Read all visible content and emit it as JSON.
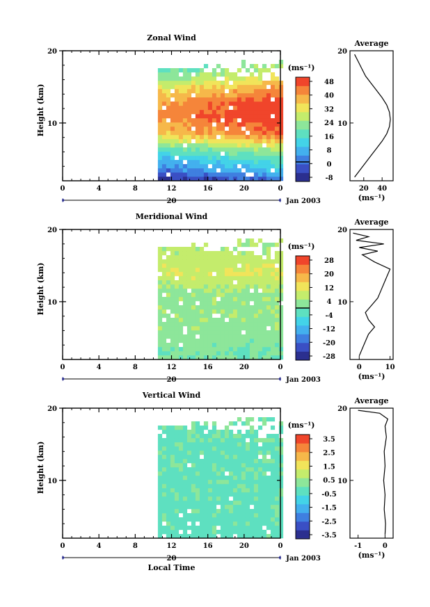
{
  "chart_data": [
    {
      "type": "heatmap",
      "title": "Zonal Wind",
      "ylabel": "Height (km)",
      "ytick_labels": [
        "20",
        "10"
      ],
      "yticks": [
        20,
        10
      ],
      "ylim": [
        2,
        20
      ],
      "xtick_labels": [
        "0",
        "4",
        "8",
        "12",
        "16",
        "20",
        "0"
      ],
      "xlim": [
        0,
        24
      ],
      "data_start_hour": 10.5,
      "date_day": "20",
      "date_label": "Jan 2003",
      "colorbar": {
        "unit": "(ms⁻¹)",
        "tick_labels": [
          "48",
          "40",
          "32",
          "24",
          "16",
          "8",
          "0",
          "-8"
        ],
        "range": [
          -12,
          52
        ],
        "zero_line": true
      },
      "layers": [
        {
          "h": 2.0,
          "v": -6
        },
        {
          "h": 3.0,
          "v": 2
        },
        {
          "h": 4.0,
          "v": 8
        },
        {
          "h": 5.5,
          "v": 16
        },
        {
          "h": 7.0,
          "v": 28
        },
        {
          "h": 8.5,
          "v": 42
        },
        {
          "h": 11.0,
          "v": 48
        },
        {
          "h": 13.0,
          "v": 46
        },
        {
          "h": 15.0,
          "v": 36
        },
        {
          "h": 17.0,
          "v": 24
        },
        {
          "h": 19.0,
          "v": 16
        }
      ],
      "profile": {
        "title": "Average",
        "x_tick_labels": [
          "20",
          "40"
        ],
        "xlim": [
          5,
          52
        ],
        "xlabel": "(ms⁻¹)",
        "y_tick_labels": [
          "20",
          "10"
        ],
        "points": [
          {
            "h": 2.5,
            "v": 10
          },
          {
            "h": 3.5,
            "v": 16
          },
          {
            "h": 4.5,
            "v": 22
          },
          {
            "h": 5.5,
            "v": 28
          },
          {
            "h": 6.5,
            "v": 34
          },
          {
            "h": 7.5,
            "v": 40
          },
          {
            "h": 8.5,
            "v": 45
          },
          {
            "h": 9.5,
            "v": 48
          },
          {
            "h": 10.5,
            "v": 49
          },
          {
            "h": 11.5,
            "v": 48
          },
          {
            "h": 12.5,
            "v": 45
          },
          {
            "h": 13.5,
            "v": 40
          },
          {
            "h": 14.5,
            "v": 34
          },
          {
            "h": 15.5,
            "v": 28
          },
          {
            "h": 16.5,
            "v": 22
          },
          {
            "h": 17.5,
            "v": 18
          },
          {
            "h": 18.5,
            "v": 14
          },
          {
            "h": 19.5,
            "v": 10
          }
        ]
      }
    },
    {
      "type": "heatmap",
      "title": "Meridional Wind",
      "ylabel": "Height (km)",
      "ytick_labels": [
        "20",
        "10"
      ],
      "yticks": [
        20,
        10
      ],
      "ylim": [
        2,
        20
      ],
      "xtick_labels": [
        "0",
        "4",
        "8",
        "12",
        "16",
        "20",
        "0"
      ],
      "xlim": [
        0,
        24
      ],
      "data_start_hour": 10.5,
      "date_day": "20",
      "date_label": "Jan 2003",
      "colorbar": {
        "unit": "(ms⁻¹)",
        "tick_labels": [
          "28",
          "20",
          "12",
          "4",
          "-4",
          "-12",
          "-20",
          "-28"
        ],
        "range": [
          -32,
          32
        ],
        "zero_line": true
      },
      "layers": [
        {
          "h": 2.0,
          "v": 0
        },
        {
          "h": 4.0,
          "v": 2
        },
        {
          "h": 6.0,
          "v": 3
        },
        {
          "h": 8.0,
          "v": 4
        },
        {
          "h": 10.0,
          "v": 3
        },
        {
          "h": 12.0,
          "v": 6
        },
        {
          "h": 14.0,
          "v": 10
        },
        {
          "h": 16.0,
          "v": 8
        },
        {
          "h": 18.0,
          "v": 6
        },
        {
          "h": 19.5,
          "v": 4
        }
      ],
      "profile": {
        "title": "Average",
        "x_tick_labels": [
          "0",
          "10"
        ],
        "xlim": [
          -3,
          11
        ],
        "xlabel": "(ms⁻¹)",
        "y_tick_labels": [
          "20",
          "10"
        ],
        "points": [
          {
            "h": 2.5,
            "v": 0
          },
          {
            "h": 3.5,
            "v": 1
          },
          {
            "h": 4.5,
            "v": 2
          },
          {
            "h": 5.5,
            "v": 3
          },
          {
            "h": 6.5,
            "v": 5
          },
          {
            "h": 7.5,
            "v": 3
          },
          {
            "h": 8.5,
            "v": 2
          },
          {
            "h": 9.5,
            "v": 4
          },
          {
            "h": 10.5,
            "v": 6
          },
          {
            "h": 11.5,
            "v": 7
          },
          {
            "h": 12.5,
            "v": 8
          },
          {
            "h": 13.5,
            "v": 9
          },
          {
            "h": 14.5,
            "v": 10
          },
          {
            "h": 15.5,
            "v": 5
          },
          {
            "h": 16.5,
            "v": 1
          },
          {
            "h": 17.0,
            "v": 6
          },
          {
            "h": 17.5,
            "v": 0
          },
          {
            "h": 18.0,
            "v": 8
          },
          {
            "h": 18.5,
            "v": -1
          },
          {
            "h": 19.0,
            "v": 3
          },
          {
            "h": 19.5,
            "v": -2
          }
        ]
      }
    },
    {
      "type": "heatmap",
      "title": "Vertical Wind",
      "ylabel": "Height (km)",
      "ytick_labels": [
        "20",
        "10"
      ],
      "yticks": [
        20,
        10
      ],
      "ylim": [
        2,
        20
      ],
      "xtick_labels": [
        "0",
        "4",
        "8",
        "12",
        "16",
        "20",
        "0"
      ],
      "xlim": [
        0,
        24
      ],
      "data_start_hour": 10.5,
      "date_day": "20",
      "date_label": "Jan 2003",
      "xlabel": "Local Time",
      "colorbar": {
        "unit": "(ms⁻¹)",
        "tick_labels": [
          "3.5",
          "2.5",
          "1.5",
          "0.5",
          "-0.5",
          "-1.5",
          "-2.5",
          "-3.5"
        ],
        "range": [
          -4,
          4
        ],
        "zero_line": false
      },
      "layers": [
        {
          "h": 2.0,
          "v": -0.3
        },
        {
          "h": 6.0,
          "v": -0.2
        },
        {
          "h": 10.0,
          "v": -0.2
        },
        {
          "h": 14.0,
          "v": -0.2
        },
        {
          "h": 18.0,
          "v": 0.0
        },
        {
          "h": 19.5,
          "v": 0.3
        }
      ],
      "profile": {
        "title": "Average",
        "x_tick_labels": [
          "-1",
          "0"
        ],
        "xlim": [
          -1.3,
          0.3
        ],
        "xlabel": "(ms⁻¹)",
        "y_tick_labels": [
          "20",
          "10"
        ],
        "points": [
          {
            "h": 2.5,
            "v": 0
          },
          {
            "h": 4.0,
            "v": 0.02
          },
          {
            "h": 6.0,
            "v": -0.03
          },
          {
            "h": 8.0,
            "v": 0
          },
          {
            "h": 10.0,
            "v": -0.05
          },
          {
            "h": 12.0,
            "v": 0
          },
          {
            "h": 14.0,
            "v": -0.03
          },
          {
            "h": 16.0,
            "v": 0.05
          },
          {
            "h": 17.5,
            "v": 0
          },
          {
            "h": 18.5,
            "v": 0.1
          },
          {
            "h": 19.3,
            "v": -0.2
          },
          {
            "h": 19.7,
            "v": -1.0
          }
        ]
      }
    }
  ]
}
